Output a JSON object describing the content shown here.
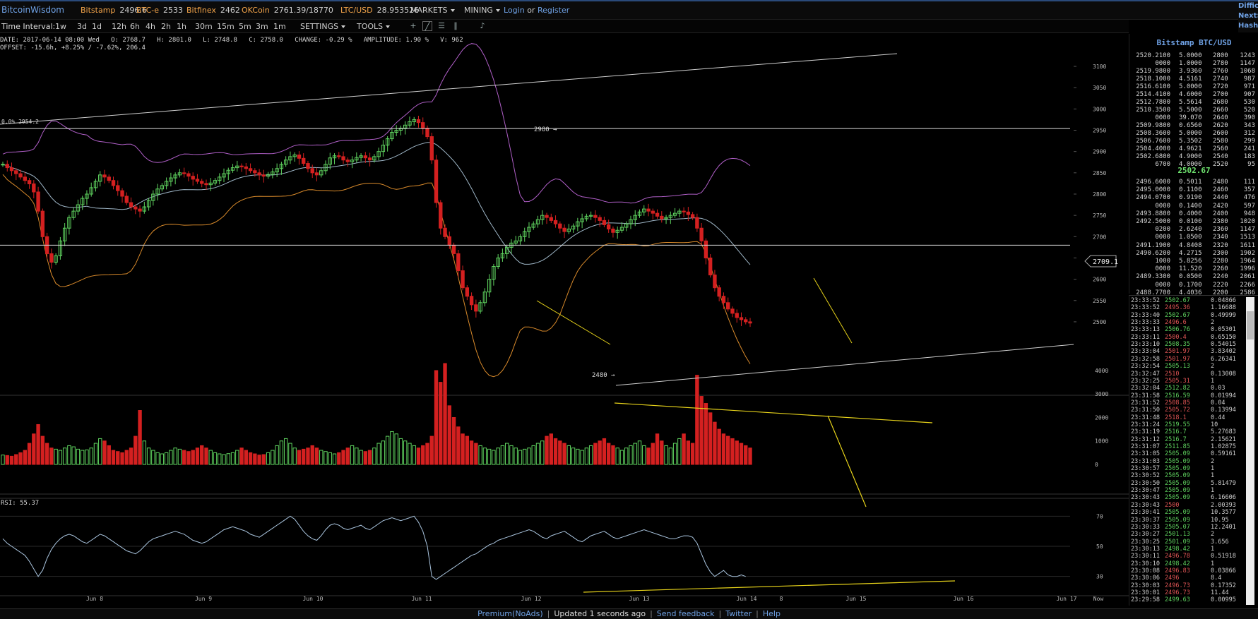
{
  "header": {
    "brand": "BitcoinWisdom",
    "tickers": [
      {
        "name": "Bitstamp",
        "value": "2496.6"
      },
      {
        "name": "BTC-e",
        "value": "2533"
      },
      {
        "name": "Bitfinex",
        "value": "2462"
      },
      {
        "name": "OKCoin",
        "value": "2761.39/18770"
      },
      {
        "name": "LTC/USD",
        "value": "28.953526"
      }
    ],
    "menus": [
      "MARKETS",
      "MINING"
    ],
    "login": "Login",
    "or": "or",
    "register": "Register",
    "side_links": [
      "Diffic",
      "Next:",
      "Hash"
    ]
  },
  "toolbar": {
    "label": "Time Interval:",
    "intervals": [
      "1w",
      "3d",
      "1d",
      "12h",
      "6h",
      "4h",
      "2h",
      "1h",
      "30m",
      "15m",
      "5m",
      "3m",
      "1m"
    ],
    "active_interval": "1h",
    "settings": "SETTINGS",
    "tools": "TOOLS"
  },
  "info": {
    "line1": "DATE: 2017-06-14 08:00 Wed   O: 2768.7   H: 2801.0   L: 2748.8   C: 2758.0   CHANGE: -0.29 %   AMPLITUDE: 1.90 %   V: 962",
    "line2": "OFFSET: -15.6h, +8.25% / -7.62%, 206.4",
    "fib_label": "0.0% 2954.2",
    "high_marker": "2980 →",
    "low_marker": "2480 →",
    "price_tag": "2709.1",
    "rsi_label": "RSI: 55.37"
  },
  "chart_data": {
    "type": "candlestick",
    "market": "Bitstamp BTC/USD",
    "interval": "1h",
    "price_axis": {
      "ticks": [
        2500,
        2550,
        2600,
        2650,
        2700,
        2750,
        2800,
        2850,
        2900,
        2950,
        3000,
        3050,
        3100
      ]
    },
    "volume_axis": {
      "ticks": [
        0,
        1000,
        2000,
        3000,
        4000
      ]
    },
    "rsi_axis": {
      "ticks": [
        30,
        50,
        70
      ]
    },
    "x_labels": [
      "Jun 8",
      "Jun 9",
      "Jun 10",
      "Jun 11",
      "Jun 12",
      "Jun 13",
      "Jun 14",
      "8",
      "Jun 15",
      "Jun 16",
      "Jun 17",
      "Now"
    ],
    "price_close": [
      2870,
      2862,
      2855,
      2848,
      2840,
      2832,
      2824,
      2805,
      2760,
      2700,
      2660,
      2640,
      2655,
      2690,
      2720,
      2745,
      2760,
      2775,
      2790,
      2800,
      2815,
      2830,
      2845,
      2840,
      2832,
      2820,
      2808,
      2795,
      2780,
      2770,
      2765,
      2760,
      2770,
      2785,
      2800,
      2812,
      2820,
      2830,
      2838,
      2845,
      2850,
      2848,
      2842,
      2835,
      2830,
      2825,
      2822,
      2826,
      2832,
      2840,
      2848,
      2856,
      2862,
      2866,
      2864,
      2860,
      2855,
      2850,
      2845,
      2842,
      2846,
      2852,
      2860,
      2870,
      2880,
      2888,
      2892,
      2884,
      2872,
      2860,
      2850,
      2845,
      2855,
      2870,
      2885,
      2890,
      2888,
      2880,
      2876,
      2880,
      2886,
      2890,
      2885,
      2880,
      2888,
      2900,
      2915,
      2930,
      2945,
      2950,
      2955,
      2962,
      2970,
      2975,
      2968,
      2955,
      2935,
      2880,
      2780,
      2720,
      2700,
      2680,
      2660,
      2620,
      2580,
      2560,
      2540,
      2525,
      2545,
      2570,
      2600,
      2630,
      2650,
      2660,
      2675,
      2685,
      2690,
      2700,
      2712,
      2722,
      2730,
      2740,
      2750,
      2745,
      2738,
      2730,
      2720,
      2712,
      2718,
      2725,
      2735,
      2742,
      2748,
      2750,
      2745,
      2738,
      2728,
      2718,
      2710,
      2715,
      2722,
      2730,
      2740,
      2750,
      2758,
      2765,
      2760,
      2755,
      2748,
      2742,
      2745,
      2750,
      2755,
      2760,
      2758,
      2752,
      2745,
      2720,
      2690,
      2650,
      2610,
      2580,
      2560,
      2545,
      2530,
      2520,
      2510,
      2505,
      2500,
      2497
    ],
    "volume": [
      400,
      380,
      350,
      420,
      500,
      600,
      900,
      1300,
      1700,
      1200,
      900,
      700,
      650,
      600,
      700,
      800,
      750,
      650,
      600,
      620,
      700,
      900,
      1100,
      1000,
      800,
      600,
      550,
      500,
      600,
      700,
      1200,
      2300,
      1000,
      700,
      600,
      500,
      450,
      500,
      600,
      700,
      650,
      600,
      550,
      600,
      700,
      800,
      700,
      600,
      500,
      450,
      420,
      460,
      500,
      600,
      700,
      600,
      500,
      450,
      400,
      420,
      500,
      600,
      800,
      1000,
      1100,
      900,
      700,
      600,
      650,
      700,
      800,
      700,
      600,
      550,
      500,
      450,
      500,
      600,
      700,
      800,
      700,
      600,
      550,
      600,
      700,
      900,
      1000,
      1200,
      1400,
      1300,
      1100,
      1000,
      900,
      800,
      700,
      800,
      900,
      1200,
      4000,
      3500,
      4300,
      2500,
      2000,
      1600,
      1300,
      1200,
      1000,
      900,
      800,
      700,
      650,
      600,
      700,
      800,
      900,
      800,
      700,
      600,
      650,
      700,
      800,
      900,
      1000,
      1200,
      1300,
      1100,
      1000,
      900,
      800,
      700,
      650,
      600,
      700,
      800,
      900,
      1000,
      1100,
      900,
      800,
      700,
      600,
      700,
      800,
      900,
      1000,
      800,
      700,
      900,
      1300,
      1000,
      800,
      700,
      900,
      1100,
      1300,
      1000,
      900,
      3800,
      2900,
      2600,
      2200,
      1800,
      1500,
      1300,
      1200,
      1100,
      1000,
      900,
      800,
      700
    ],
    "rsi": [
      55,
      52,
      50,
      48,
      46,
      44,
      40,
      35,
      30,
      34,
      42,
      48,
      52,
      55,
      57,
      58,
      57,
      55,
      53,
      52,
      54,
      56,
      58,
      57,
      55,
      53,
      51,
      49,
      47,
      46,
      45,
      47,
      50,
      53,
      55,
      56,
      57,
      58,
      59,
      60,
      59,
      58,
      56,
      54,
      53,
      52,
      53,
      55,
      57,
      59,
      61,
      62,
      63,
      62,
      61,
      60,
      58,
      57,
      56,
      58,
      60,
      62,
      64,
      66,
      68,
      70,
      68,
      64,
      60,
      57,
      55,
      54,
      57,
      61,
      64,
      65,
      64,
      62,
      61,
      62,
      63,
      64,
      62,
      61,
      63,
      65,
      67,
      68,
      69,
      68,
      67,
      68,
      69,
      70,
      66,
      60,
      50,
      30,
      28,
      30,
      32,
      34,
      36,
      38,
      40,
      42,
      44,
      45,
      47,
      49,
      51,
      52,
      54,
      55,
      56,
      57,
      58,
      59,
      60,
      61,
      60,
      58,
      56,
      55,
      57,
      58,
      59,
      60,
      58,
      56,
      54,
      53,
      55,
      57,
      58,
      59,
      60,
      58,
      56,
      55,
      56,
      57,
      58,
      59,
      60,
      61,
      60,
      59,
      58,
      57,
      56,
      55,
      55,
      56,
      57,
      57,
      56,
      52,
      45,
      38,
      33,
      30,
      32,
      34,
      31,
      30,
      30,
      31,
      30
    ]
  },
  "orderbook": {
    "title": "Bitstamp BTC/USD",
    "asks": [
      [
        "2520.21",
        "00",
        "5.0000",
        "2800",
        "1243"
      ],
      [
        "",
        "0000",
        "1.0000",
        "2780",
        "1147"
      ],
      [
        "2519.98",
        "00",
        "3.9360",
        "2760",
        "1068"
      ],
      [
        "2518.10",
        "00",
        "4.5161",
        "2740",
        "987"
      ],
      [
        "2516.61",
        "00",
        "5.0000",
        "2720",
        "971"
      ],
      [
        "2514.41",
        "00",
        "4.6000",
        "2700",
        "907"
      ],
      [
        "2512.78",
        "00",
        "5.5614",
        "2680",
        "530"
      ],
      [
        "2510.35",
        "00",
        "5.5000",
        "2660",
        "520"
      ],
      [
        "",
        "0000",
        "39.070",
        "2640",
        "390"
      ],
      [
        "2509.98",
        "00",
        "0.6560",
        "2620",
        "343"
      ],
      [
        "2508.36",
        "00",
        "5.0000",
        "2600",
        "312"
      ],
      [
        "2506.76",
        "00",
        "5.3502",
        "2580",
        "299"
      ],
      [
        "2504.40",
        "00",
        "4.9621",
        "2560",
        "241"
      ],
      [
        "2502.68",
        "00",
        "4.9000",
        "2540",
        "183"
      ],
      [
        "",
        "6700",
        "4.0000",
        "2520",
        "95"
      ]
    ],
    "mid_price": "2502.67",
    "bids": [
      [
        "2496.60",
        "00",
        "0.5011",
        "2480",
        "111"
      ],
      [
        "2495.00",
        "00",
        "0.1100",
        "2460",
        "357"
      ],
      [
        "2494.07",
        "00",
        "0.9190",
        "2440",
        "476"
      ],
      [
        "",
        "0000",
        "0.1400",
        "2420",
        "597"
      ],
      [
        "2493.88",
        "00",
        "0.4000",
        "2400",
        "948"
      ],
      [
        "2492.50",
        "00",
        "0.0100",
        "2380",
        "1020"
      ],
      [
        "",
        "0200",
        "2.6240",
        "2360",
        "1147"
      ],
      [
        "",
        "0000",
        "1.0500",
        "2340",
        "1513"
      ],
      [
        "2491.19",
        "00",
        "4.8408",
        "2320",
        "1611"
      ],
      [
        "2490.62",
        "00",
        "4.2715",
        "2300",
        "1902"
      ],
      [
        "",
        "1000",
        "5.8256",
        "2280",
        "1964"
      ],
      [
        "",
        "0000",
        "11.520",
        "2260",
        "1996"
      ],
      [
        "2489.33",
        "00",
        "0.0500",
        "2240",
        "2061"
      ],
      [
        "",
        "0000",
        "0.1700",
        "2220",
        "2266"
      ],
      [
        "2488.77",
        "00",
        "4.4036",
        "2200",
        "2586"
      ]
    ]
  },
  "trades": [
    [
      "23:33:52",
      "2502.67",
      "up",
      "0.04866"
    ],
    [
      "23:33:52",
      "2495.36",
      "dn",
      "1.16688"
    ],
    [
      "23:33:40",
      "2502.67",
      "up",
      "0.49999"
    ],
    [
      "23:33:33",
      "2496.6",
      "dn",
      "2"
    ],
    [
      "23:33:13",
      "2506.76",
      "up",
      "0.05301"
    ],
    [
      "23:33:11",
      "2500.4",
      "dn",
      "0.65150"
    ],
    [
      "23:33:10",
      "2508.35",
      "up",
      "0.54015"
    ],
    [
      "23:33:04",
      "2501.97",
      "dn",
      "3.83402"
    ],
    [
      "23:32:58",
      "2501.97",
      "dn",
      "6.26341"
    ],
    [
      "23:32:54",
      "2505.13",
      "up",
      "2"
    ],
    [
      "23:32:47",
      "2510",
      "dn",
      "0.13008"
    ],
    [
      "23:32:25",
      "2505.31",
      "dn",
      "1"
    ],
    [
      "23:32:04",
      "2512.82",
      "up",
      "0.03"
    ],
    [
      "23:31:58",
      "2516.59",
      "up",
      "0.01994"
    ],
    [
      "23:31:52",
      "2508.85",
      "dn",
      "0.04"
    ],
    [
      "23:31:50",
      "2505.72",
      "dn",
      "0.13994"
    ],
    [
      "23:31:48",
      "2518.1",
      "dn",
      "0.44"
    ],
    [
      "23:31:24",
      "2519.55",
      "up",
      "10"
    ],
    [
      "23:31:19",
      "2516.7",
      "up",
      "5.27683"
    ],
    [
      "23:31:12",
      "2516.7",
      "up",
      "2.15621"
    ],
    [
      "23:31:07",
      "2511.85",
      "up",
      "1.02875"
    ],
    [
      "23:31:05",
      "2505.09",
      "up",
      "0.59161"
    ],
    [
      "23:31:03",
      "2505.09",
      "up",
      "2"
    ],
    [
      "23:30:57",
      "2505.09",
      "up",
      "1"
    ],
    [
      "23:30:52",
      "2505.09",
      "up",
      "1"
    ],
    [
      "23:30:50",
      "2505.09",
      "up",
      "5.81479"
    ],
    [
      "23:30:47",
      "2505.09",
      "up",
      "1"
    ],
    [
      "23:30:43",
      "2505.09",
      "up",
      "6.16606"
    ],
    [
      "23:30:43",
      "2500",
      "dn",
      "2.00393"
    ],
    [
      "23:30:41",
      "2505.09",
      "up",
      "10.3577"
    ],
    [
      "23:30:37",
      "2505.09",
      "up",
      "10.95"
    ],
    [
      "23:30:33",
      "2505.07",
      "up",
      "12.2401"
    ],
    [
      "23:30:27",
      "2501.13",
      "up",
      "2"
    ],
    [
      "23:30:25",
      "2501.09",
      "up",
      "3.656"
    ],
    [
      "23:30:13",
      "2498.42",
      "up",
      "1"
    ],
    [
      "23:30:11",
      "2496.78",
      "dn",
      "0.51918"
    ],
    [
      "23:30:10",
      "2498.42",
      "up",
      "1"
    ],
    [
      "23:30:08",
      "2496.83",
      "dn",
      "0.03866"
    ],
    [
      "23:30:06",
      "2496",
      "dn",
      "8.4"
    ],
    [
      "23:30:03",
      "2496.73",
      "dn",
      "0.17352"
    ],
    [
      "23:30:01",
      "2496.73",
      "dn",
      "11.44"
    ],
    [
      "23:29:58",
      "2499.63",
      "up",
      "0.00995"
    ]
  ],
  "footer": {
    "premium": "Premium(NoAds)",
    "updated": "Updated 1 seconds ago",
    "feedback": "Send feedback",
    "twitter": "Twitter",
    "help": "Help"
  },
  "colors": {
    "up": "#5fd35f",
    "down": "#d42020",
    "boll_upper": "#b05fc8",
    "boll_mid": "#9fb7c8",
    "boll_lower": "#d98a2b",
    "trendline": "#e6d21a",
    "brand": "#6fa2e6",
    "ticker": "#f3a44a"
  }
}
